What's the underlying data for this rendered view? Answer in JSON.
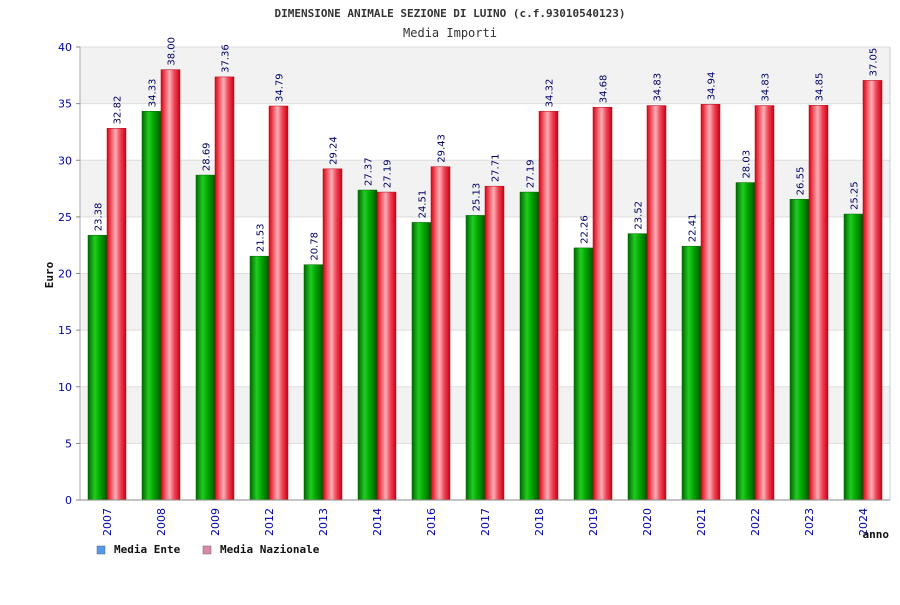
{
  "chart_data": {
    "type": "bar",
    "title": "DIMENSIONE ANIMALE SEZIONE DI LUINO (c.f.93010540123)",
    "subtitle": "Media Importi",
    "xlabel": "anno",
    "ylabel": "Euro",
    "ylim": [
      0,
      40
    ],
    "yticks": [
      "0",
      "5",
      "10",
      "15",
      "20",
      "25",
      "30",
      "35",
      "40"
    ],
    "grid": true,
    "legend_position": "bottom-left",
    "categories": [
      "2007",
      "2008",
      "2009",
      "2012",
      "2013",
      "2014",
      "2016",
      "2017",
      "2018",
      "2019",
      "2020",
      "2021",
      "2022",
      "2023",
      "2024"
    ],
    "series": [
      {
        "name": "Media Ente",
        "color": "#00aa00",
        "legend_color": "#5599ee",
        "values": [
          23.38,
          34.33,
          28.69,
          21.53,
          20.78,
          27.37,
          24.51,
          25.13,
          27.19,
          22.26,
          23.52,
          22.41,
          28.03,
          26.55,
          25.25
        ],
        "labels": [
          "23.38",
          "34.33",
          "28.69",
          "21.53",
          "20.78",
          "27.37",
          "24.51",
          "25.13",
          "27.19",
          "22.26",
          "23.52",
          "22.41",
          "28.03",
          "26.55",
          "25.25"
        ]
      },
      {
        "name": "Media Nazionale",
        "color": "#ee1122",
        "legend_color": "#dd88aa",
        "values": [
          32.82,
          38.0,
          37.36,
          34.79,
          29.24,
          27.19,
          29.43,
          27.71,
          34.32,
          34.68,
          34.83,
          34.94,
          34.83,
          34.85,
          37.05
        ],
        "labels": [
          "32.82",
          "38.00",
          "37.36",
          "34.79",
          "29.24",
          "27.19",
          "29.43",
          "27.71",
          "34.32",
          "34.68",
          "34.83",
          "34.94",
          "34.83",
          "34.85",
          "37.05"
        ]
      }
    ]
  }
}
